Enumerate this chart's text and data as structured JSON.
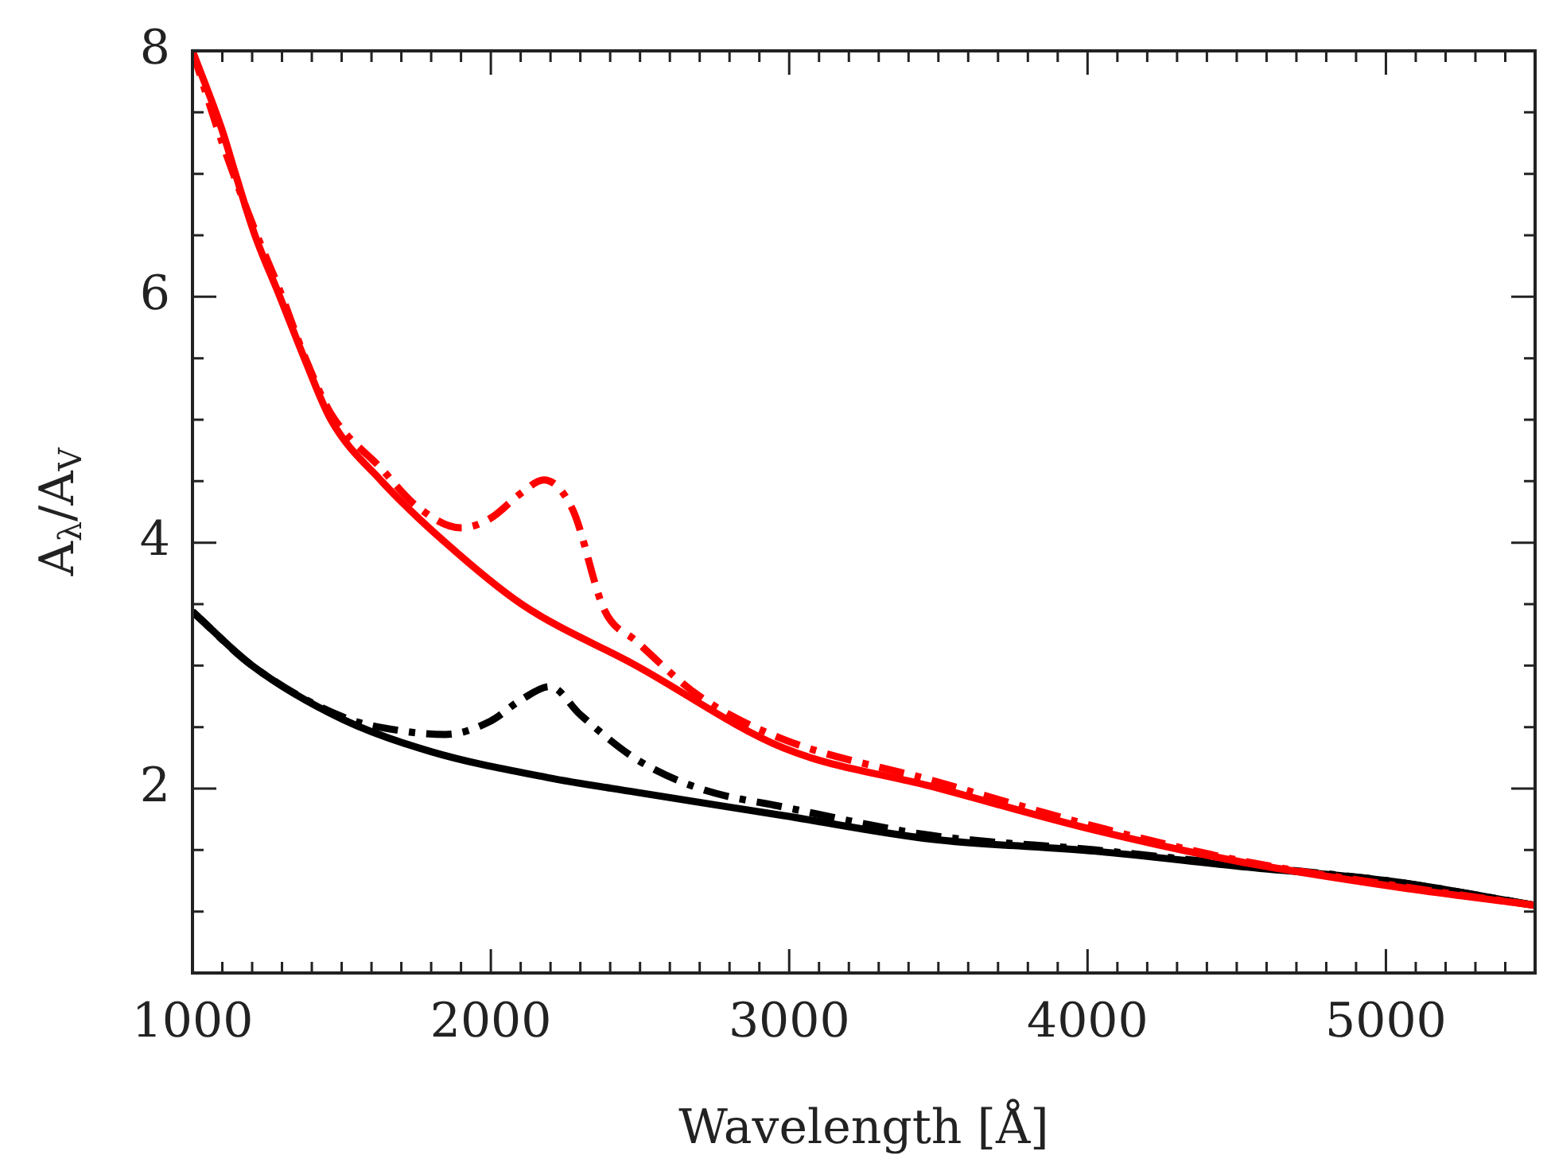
{
  "chart_data": {
    "type": "line",
    "xlabel": "Wavelength [Å]",
    "ylabel": "A$_{λ}$/A$_{V}$",
    "xlim": [
      1000,
      5500
    ],
    "ylim": [
      0.5,
      8
    ],
    "xticks": [
      1000,
      {
        "value": 1100,
        "label": null
      },
      {
        "value": 1200,
        "label": null
      },
      {
        "value": 1300,
        "label": null
      },
      {
        "value": 1400,
        "label": null
      },
      {
        "value": 1500,
        "label": null
      },
      {
        "value": 1600,
        "label": null
      },
      {
        "value": 1700,
        "label": null
      },
      {
        "value": 1800,
        "label": null
      },
      {
        "value": 1900,
        "label": null
      },
      2000,
      {
        "value": 2100,
        "label": null
      },
      {
        "value": 2200,
        "label": null
      },
      {
        "value": 2300,
        "label": null
      },
      {
        "value": 2400,
        "label": null
      },
      {
        "value": 2500,
        "label": null
      },
      {
        "value": 2600,
        "label": null
      },
      {
        "value": 2700,
        "label": null
      },
      {
        "value": 2800,
        "label": null
      },
      {
        "value": 2900,
        "label": null
      },
      3000,
      {
        "value": 3100,
        "label": null
      },
      {
        "value": 3200,
        "label": null
      },
      {
        "value": 3300,
        "label": null
      },
      {
        "value": 3400,
        "label": null
      },
      {
        "value": 3500,
        "label": null
      },
      {
        "value": 3600,
        "label": null
      },
      {
        "value": 3700,
        "label": null
      },
      {
        "value": 3800,
        "label": null
      },
      {
        "value": 3900,
        "label": null
      },
      4000,
      {
        "value": 4100,
        "label": null
      },
      {
        "value": 4200,
        "label": null
      },
      {
        "value": 4300,
        "label": null
      },
      {
        "value": 4400,
        "label": null
      },
      {
        "value": 4500,
        "label": null
      },
      {
        "value": 4600,
        "label": null
      },
      {
        "value": 4700,
        "label": null
      },
      {
        "value": 4800,
        "label": null
      },
      {
        "value": 4900,
        "label": null
      },
      5000,
      {
        "value": 5100,
        "label": null
      },
      {
        "value": 5200,
        "label": null
      },
      {
        "value": 5300,
        "label": null
      },
      {
        "value": 5400,
        "label": null
      }
    ],
    "yticks": [
      {
        "value": 1,
        "label": null
      },
      {
        "value": 1.5,
        "label": null
      },
      2,
      {
        "value": 2.5,
        "label": null
      },
      {
        "value": 3,
        "label": null
      },
      {
        "value": 3.5,
        "label": null
      },
      4,
      {
        "value": 4.5,
        "label": null
      },
      {
        "value": 5,
        "label": null
      },
      {
        "value": 5.5,
        "label": null
      },
      6,
      {
        "value": 6.5,
        "label": null
      },
      {
        "value": 7,
        "label": null
      },
      {
        "value": 7.5,
        "label": null
      },
      8
    ],
    "grid": false,
    "legend": false,
    "marker": "none",
    "series": [
      {
        "color": "#ff0000",
        "line_style": "dashed",
        "x": [
          1000,
          1100,
          1208,
          1293,
          1375,
          1464,
          1634,
          1750,
          1900,
          2000,
          2100,
          2178,
          2274,
          2381,
          2487,
          2700,
          2981,
          3473,
          4028,
          4500,
          5035,
          5500
        ],
        "values": [
          8.0,
          7.25,
          6.55,
          6.05,
          5.52,
          5.05,
          4.6,
          4.3,
          4.12,
          4.2,
          4.4,
          4.51,
          4.27,
          3.45,
          3.2,
          2.75,
          2.4,
          2.07,
          1.69,
          1.42,
          1.21,
          1.05
        ]
      },
      {
        "color": "#ff0000",
        "line_style": "solid",
        "x": [
          1000,
          1100,
          1144,
          1208,
          1293,
          1375,
          1464,
          1634,
          1848,
          2103,
          2487,
          2981,
          3473,
          4028,
          4500,
          5035,
          5500
        ],
        "values": [
          8.0,
          7.35,
          7.0,
          6.51,
          6.0,
          5.5,
          5.0,
          4.5,
          4.0,
          3.5,
          3.0,
          2.33,
          2.02,
          1.66,
          1.41,
          1.2,
          1.05
        ]
      },
      {
        "color": "#000000",
        "line_style": "dashed",
        "x": [
          1000,
          1200,
          1506,
          1700,
          1848,
          2000,
          2100,
          2199,
          2300,
          2487,
          2700,
          2981,
          3473,
          4028,
          4500,
          5035,
          5500
        ],
        "values": [
          3.44,
          3.0,
          2.58,
          2.47,
          2.44,
          2.55,
          2.72,
          2.83,
          2.6,
          2.24,
          2.0,
          1.85,
          1.62,
          1.5,
          1.38,
          1.24,
          1.05
        ]
      },
      {
        "color": "#000000",
        "line_style": "solid",
        "x": [
          1000,
          1200,
          1506,
          1800,
          2189,
          2487,
          2981,
          3473,
          4028,
          4500,
          5035,
          5500
        ],
        "values": [
          3.44,
          3.0,
          2.56,
          2.3,
          2.09,
          1.97,
          1.78,
          1.59,
          1.49,
          1.37,
          1.24,
          1.05
        ]
      }
    ]
  }
}
